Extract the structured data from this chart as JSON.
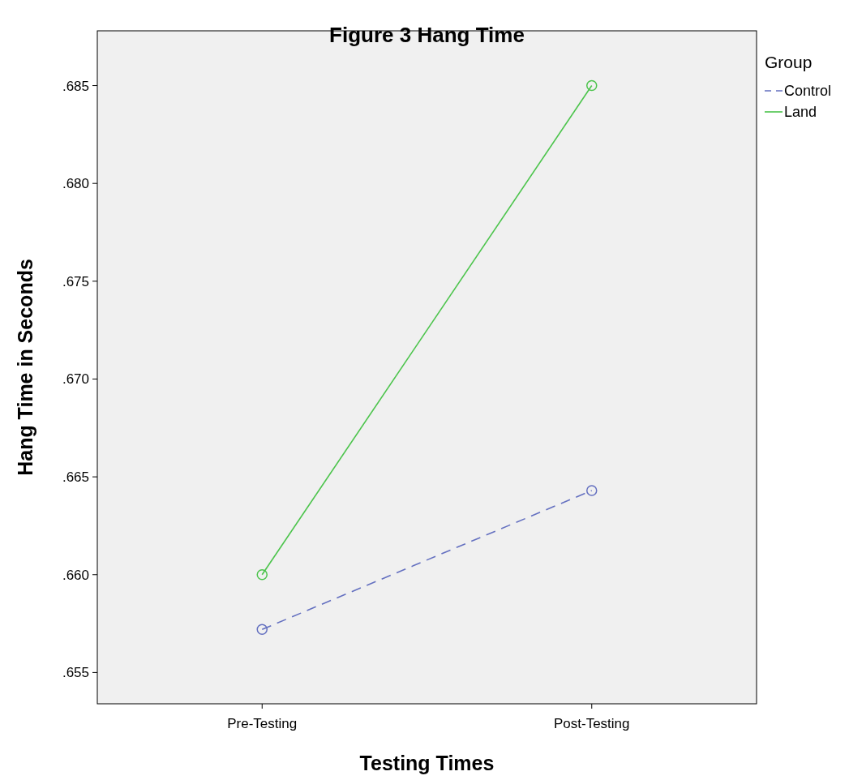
{
  "chart_data": {
    "type": "line",
    "title": "Figure 3 Hang Time",
    "xlabel": "Testing Times",
    "ylabel": "Hang Time in Seconds",
    "legend_title": "Group",
    "categories": [
      "Pre-Testing",
      "Post-Testing"
    ],
    "series": [
      {
        "name": "Control",
        "color": "#6470c0",
        "values": [
          0.6572,
          0.6643
        ],
        "line_style": "dashed"
      },
      {
        "name": "Land",
        "color": "#4cc44c",
        "values": [
          0.66,
          0.685
        ],
        "line_style": "solid"
      }
    ],
    "ylim": [
      0.6534,
      0.6878
    ],
    "yticks": [
      {
        "value": 0.655,
        "label": ".655"
      },
      {
        "value": 0.66,
        "label": ".660"
      },
      {
        "value": 0.665,
        "label": ".665"
      },
      {
        "value": 0.67,
        "label": ".670"
      },
      {
        "value": 0.675,
        "label": ".675"
      },
      {
        "value": 0.68,
        "label": ".680"
      },
      {
        "value": 0.685,
        "label": ".685"
      }
    ],
    "marker": "circle",
    "legend": "top right",
    "grid": false
  }
}
